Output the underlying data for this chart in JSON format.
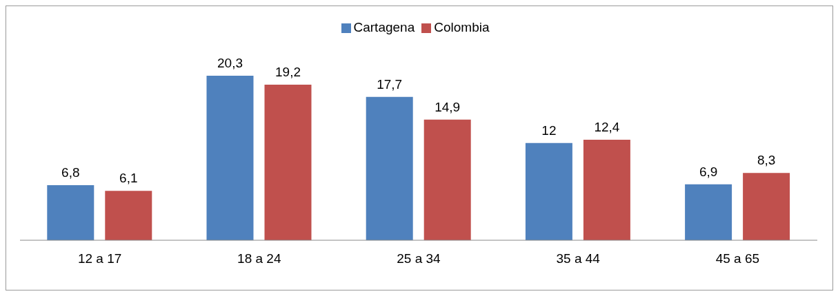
{
  "chart_data": {
    "type": "bar",
    "categories": [
      "12 a 17",
      "18 a 24",
      "25 a 34",
      "35 a 44",
      "45 a 65"
    ],
    "legend": "top",
    "grid": false,
    "series": [
      {
        "name": "Cartagena",
        "color": "#4f81bd",
        "values": [
          6.8,
          20.3,
          17.7,
          12,
          6.9
        ],
        "value_labels": [
          "6,8",
          "20,3",
          "17,7",
          "12",
          "6,9"
        ]
      },
      {
        "name": "Colombia",
        "color": "#c0504d",
        "values": [
          6.1,
          19.2,
          14.9,
          12.4,
          8.3
        ],
        "value_labels": [
          "6,1",
          "19,2",
          "14,9",
          "12,4",
          "8,3"
        ]
      }
    ]
  }
}
